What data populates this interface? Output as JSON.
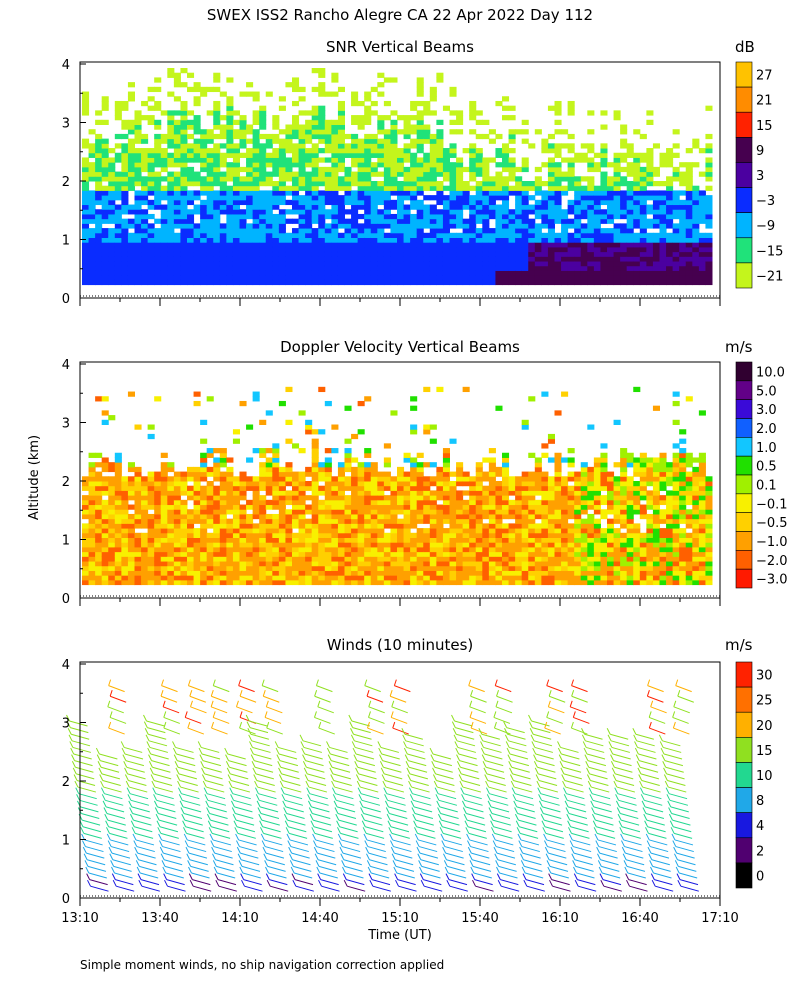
{
  "title": "SWEX ISS2 Rancho Alegre CA  22 Apr 2022 Day 112",
  "ylabel": "Altitude (km)",
  "xlabel": "Time (UT)",
  "footnote": "Simple moment winds, no ship navigation correction applied",
  "chart_data": [
    {
      "type": "heatmap",
      "title": "SNR Vertical Beams",
      "ylim": [
        0,
        4
      ],
      "yticks": [
        "0",
        "1",
        "2",
        "3",
        "4"
      ],
      "xlim": [
        "13:10",
        "17:10"
      ],
      "colorbar": {
        "unit": "dB",
        "labels": [
          "27",
          "21",
          "15",
          "9",
          "3",
          "−3",
          "−9",
          "−15",
          "−21"
        ],
        "colors": [
          "#ffc200",
          "#ff8c00",
          "#ff2200",
          "#46004f",
          "#4b00a0",
          "#0a2cff",
          "#00b4ff",
          "#20e27a",
          "#c4f51c"
        ]
      }
    },
    {
      "type": "heatmap",
      "title": "Doppler Velocity Vertical Beams",
      "ylim": [
        0,
        4
      ],
      "yticks": [
        "0",
        "1",
        "2",
        "3",
        "4"
      ],
      "xlim": [
        "13:10",
        "17:10"
      ],
      "colorbar": {
        "unit": "m/s",
        "labels": [
          "10.0",
          "5.0",
          "3.0",
          "2.0",
          "1.0",
          "0.5",
          "0.1",
          "−0.1",
          "−0.5",
          "−1.0",
          "−2.0",
          "−3.0"
        ],
        "colors": [
          "#300030",
          "#620088",
          "#3a0ad8",
          "#1060ff",
          "#12c6ff",
          "#20e000",
          "#a0f000",
          "#f8f000",
          "#ffd000",
          "#ffa000",
          "#ff6000",
          "#ff1a00"
        ]
      }
    },
    {
      "type": "scatter",
      "title": "Winds (10 minutes)",
      "ylim": [
        0,
        4
      ],
      "yticks": [
        "0",
        "1",
        "2",
        "3",
        "4"
      ],
      "x": [
        "13:10",
        "13:40",
        "14:10",
        "14:40",
        "15:10",
        "15:40",
        "16:10",
        "16:40",
        "17:10"
      ],
      "colorbar": {
        "unit": "m/s",
        "labels": [
          "30",
          "25",
          "20",
          "15",
          "10",
          "8",
          "4",
          "2",
          "0"
        ],
        "colors": [
          "#ff2200",
          "#ff7000",
          "#ffb000",
          "#90e020",
          "#22d890",
          "#20a8e8",
          "#1818e0",
          "#500070",
          "#000000"
        ]
      }
    }
  ]
}
